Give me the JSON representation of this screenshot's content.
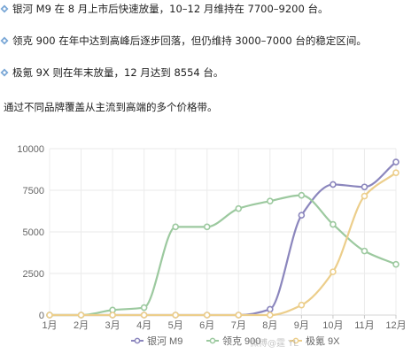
{
  "intro": {
    "points": [
      {
        "icon": "bullet-diamond-icon",
        "text": "银河 M9 在 8 月上市后快速放量，10–12 月维持在 7700–9200 台。"
      },
      {
        "icon": "bullet-diamond-icon",
        "text": "领克 900 在年中达到高峰后逐步回落，但仍维持 3000–7000 台的稳定区间。"
      },
      {
        "icon": "bullet-diamond-icon",
        "text": "极氪 9X 则在年末放量，12 月达到 8554 台。"
      }
    ],
    "summary": "通过不同品牌覆盖从主流到高端的多个价格带。"
  },
  "watermark": "微博@霆 YL",
  "chart_data": {
    "type": "line",
    "categories": [
      "1月",
      "2月",
      "3月",
      "4月",
      "5月",
      "6月",
      "7月",
      "8月",
      "9月",
      "10月",
      "11月",
      "12月"
    ],
    "y_ticks": [
      "0",
      "2500",
      "5000",
      "7500",
      "10000"
    ],
    "ylim": [
      0,
      10000
    ],
    "grid": true,
    "legend_position": "bottom",
    "series": [
      {
        "name": "银河 M9",
        "color": "#8b86bd",
        "values": [
          0,
          0,
          0,
          0,
          0,
          0,
          0,
          350,
          6000,
          7850,
          7700,
          9200
        ]
      },
      {
        "name": "领克 900",
        "color": "#9cc99f",
        "values": [
          0,
          0,
          300,
          450,
          5300,
          5300,
          6400,
          6850,
          7200,
          5450,
          3850,
          3050
        ]
      },
      {
        "name": "极氪 9X",
        "color": "#ecce8b",
        "values": [
          0,
          0,
          0,
          0,
          0,
          0,
          0,
          0,
          600,
          2600,
          7150,
          8554
        ]
      }
    ]
  }
}
